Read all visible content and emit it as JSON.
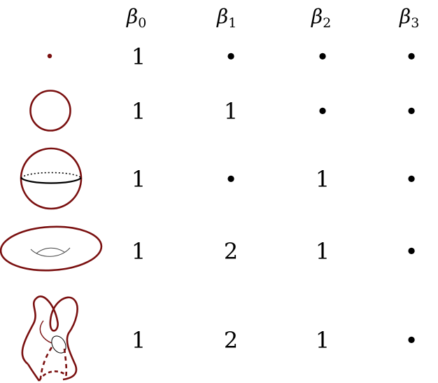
{
  "headers": [
    {
      "symbol": "β",
      "sub": "0"
    },
    {
      "symbol": "β",
      "sub": "1"
    },
    {
      "symbol": "β",
      "sub": "2"
    },
    {
      "symbol": "β",
      "sub": "3"
    }
  ],
  "rows": [
    {
      "shape": "point-icon",
      "values": [
        "1",
        "•",
        "•",
        "•"
      ]
    },
    {
      "shape": "circle-icon",
      "values": [
        "1",
        "1",
        "•",
        "•"
      ]
    },
    {
      "shape": "sphere-icon",
      "values": [
        "1",
        "•",
        "1",
        "•"
      ]
    },
    {
      "shape": "torus-icon",
      "values": [
        "1",
        "2",
        "1",
        "•"
      ]
    },
    {
      "shape": "klein-bottle-icon",
      "values": [
        "1",
        "2",
        "1",
        "•"
      ]
    }
  ],
  "colors": {
    "shape_stroke": "#7a1010",
    "text": "#000000"
  }
}
